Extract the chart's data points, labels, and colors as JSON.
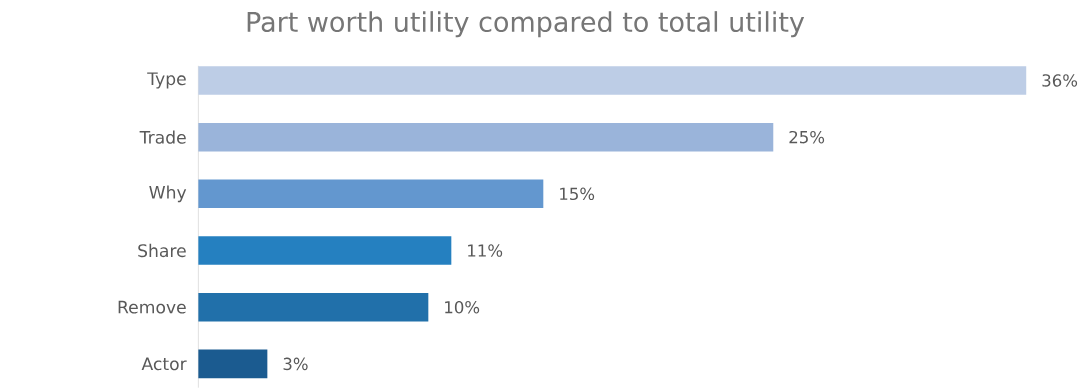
{
  "chart_data": {
    "type": "bar",
    "orientation": "horizontal",
    "title": "Part worth utility compared to total utility",
    "categories": [
      "Type",
      "Trade",
      "Why",
      "Share",
      "Remove",
      "Actor"
    ],
    "values": [
      36,
      25,
      15,
      11,
      10,
      3
    ],
    "colors": [
      "#bdcde6",
      "#9ab4da",
      "#6397cf",
      "#2580c0",
      "#2170aa",
      "#1b5b90"
    ],
    "value_labels": [
      "36%",
      "25%",
      "15%",
      "11%",
      "10%",
      "3%"
    ]
  }
}
